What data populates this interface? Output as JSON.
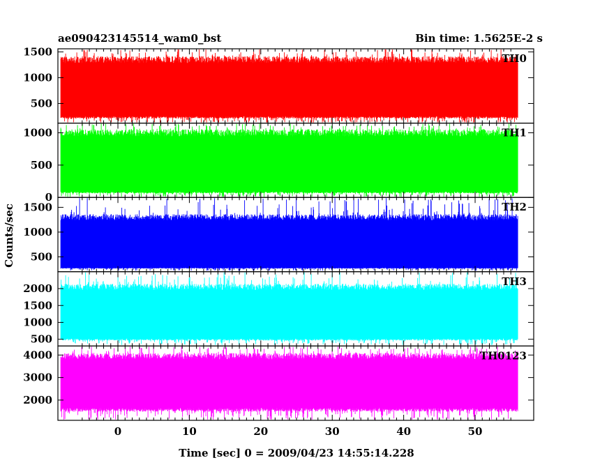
{
  "title_left": "ae090423145514_wam0_bst",
  "title_right": "Bin time: 1.5625E-2 s",
  "ylabel": "Counts/sec",
  "xlabel": "Time [sec] 0 = 2009/04/23 14:55:14.228",
  "chart_data": {
    "type": "line",
    "shared_x": {
      "range": [
        -8.4,
        58.2
      ],
      "data_range": [
        -8,
        56
      ],
      "bin_time": 0.015625,
      "ticks": [
        0,
        10,
        20,
        30,
        40,
        50
      ],
      "tick_labels": [
        "0",
        "10",
        "20",
        "30",
        "40",
        "50"
      ]
    },
    "panels": [
      {
        "name": "TH0",
        "color": "#ff0000",
        "ylim": [
          120,
          1560
        ],
        "ticks": [
          500,
          1000,
          1500
        ],
        "tick_labels": [
          "500",
          "1000",
          "1500"
        ],
        "level": [
          250,
          1350
        ],
        "spike": [
          120,
          1560
        ]
      },
      {
        "name": "TH1",
        "color": "#00ff00",
        "ylim": [
          0,
          1150
        ],
        "ticks": [
          0,
          500,
          1000
        ],
        "tick_labels": [
          "0",
          "500",
          "1000"
        ],
        "level": [
          90,
          1000
        ],
        "spike": [
          0,
          1150
        ]
      },
      {
        "name": "TH2",
        "color": "#0000ff",
        "ylim": [
          200,
          1700
        ],
        "ticks": [
          500,
          1000,
          1500
        ],
        "tick_labels": [
          "500",
          "1000",
          "1500"
        ],
        "level": [
          280,
          1300
        ],
        "spike": [
          220,
          1700
        ]
      },
      {
        "name": "TH3",
        "color": "#00ffff",
        "ylim": [
          300,
          2500
        ],
        "ticks": [
          500,
          1000,
          1500,
          2000
        ],
        "tick_labels": [
          "500",
          "1000",
          "1500",
          "2000"
        ],
        "level": [
          520,
          2050
        ],
        "spike": [
          330,
          2500
        ]
      },
      {
        "name": "TH0123",
        "color": "#ff00ff",
        "ylim": [
          1100,
          4400
        ],
        "ticks": [
          2000,
          3000,
          4000
        ],
        "tick_labels": [
          "2000",
          "3000",
          "4000"
        ],
        "level": [
          1650,
          3950
        ],
        "spike": [
          1100,
          4400
        ]
      }
    ]
  }
}
